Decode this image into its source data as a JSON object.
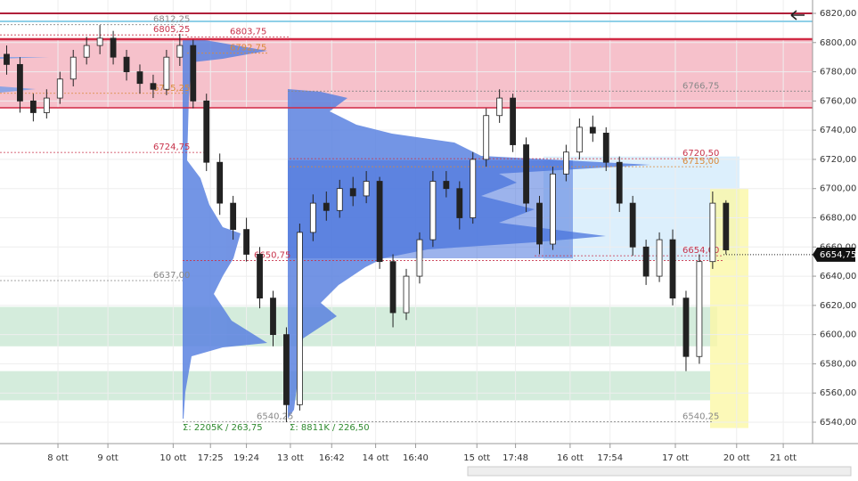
{
  "chart_data": {
    "type": "candlestick",
    "ylim": [
      6535,
      6825
    ],
    "yticks": [
      {
        "value": 6540,
        "label": "6540,00"
      },
      {
        "value": 6560,
        "label": "6560,00"
      },
      {
        "value": 6580,
        "label": "6580,00"
      },
      {
        "value": 6600,
        "label": "6600,00"
      },
      {
        "value": 6620,
        "label": "6620,00"
      },
      {
        "value": 6640,
        "label": "6640,00"
      },
      {
        "value": 6660,
        "label": "6660,00"
      },
      {
        "value": 6680,
        "label": "6680,00"
      },
      {
        "value": 6700,
        "label": "6700,00"
      },
      {
        "value": 6720,
        "label": "6720,00"
      },
      {
        "value": 6740,
        "label": "6740,00"
      },
      {
        "value": 6760,
        "label": "6760,00"
      },
      {
        "value": 6780,
        "label": "6780,00"
      },
      {
        "value": 6800,
        "label": "6800,00"
      },
      {
        "value": 6820,
        "label": "6820,00"
      }
    ],
    "xlim": [
      -0.5,
      60.5
    ],
    "xticks": [
      {
        "value": 3.85,
        "label": "8 ott"
      },
      {
        "value": 7.6,
        "label": "9 ott"
      },
      {
        "value": 12.5,
        "label": "10 ott"
      },
      {
        "value": 15.3,
        "label": "17:25"
      },
      {
        "value": 18.0,
        "label": "19:24"
      },
      {
        "value": 21.3,
        "label": "13 ott"
      },
      {
        "value": 24.4,
        "label": "16:42"
      },
      {
        "value": 27.7,
        "label": "14 ott"
      },
      {
        "value": 30.7,
        "label": "16:40"
      },
      {
        "value": 35.3,
        "label": "15 ott"
      },
      {
        "value": 38.2,
        "label": "17:48"
      },
      {
        "value": 42.3,
        "label": "16 ott"
      },
      {
        "value": 45.3,
        "label": "17:54"
      },
      {
        "value": 50.2,
        "label": "17 ott"
      },
      {
        "value": 54.8,
        "label": "20 ott"
      },
      {
        "value": 58.3,
        "label": "21 ott"
      }
    ],
    "grid": true,
    "open": [
      6792,
      6785,
      6760,
      6752,
      6762,
      6775,
      6790,
      6798,
      6803,
      6790,
      6780,
      6772,
      6768,
      6790,
      6798,
      6760,
      6718,
      6690,
      6672,
      6655,
      6625,
      6600,
      6552,
      6670,
      6690,
      6685,
      6700,
      6695,
      6705,
      6650,
      6615,
      6640,
      6665,
      6705,
      6700,
      6680,
      6720,
      6750,
      6762,
      6730,
      6690,
      6662,
      6710,
      6725,
      6742,
      6738,
      6718,
      6690,
      6660,
      6640,
      6665,
      6625,
      6585,
      6650,
      6690
    ],
    "high": [
      6798,
      6790,
      6765,
      6768,
      6780,
      6795,
      6804,
      6812,
      6808,
      6795,
      6785,
      6778,
      6795,
      6806,
      6802,
      6765,
      6724,
      6695,
      6680,
      6660,
      6630,
      6605,
      6676,
      6696,
      6698,
      6706,
      6708,
      6712,
      6708,
      6655,
      6645,
      6670,
      6712,
      6712,
      6705,
      6725,
      6755,
      6768,
      6765,
      6735,
      6695,
      6715,
      6730,
      6748,
      6750,
      6742,
      6722,
      6695,
      6665,
      6670,
      6672,
      6630,
      6655,
      6698,
      6692
    ],
    "low": [
      6778,
      6752,
      6746,
      6748,
      6758,
      6770,
      6785,
      6792,
      6785,
      6774,
      6765,
      6762,
      6764,
      6784,
      6755,
      6712,
      6682,
      6665,
      6650,
      6618,
      6592,
      6540,
      6548,
      6664,
      6678,
      6680,
      6688,
      6690,
      6645,
      6605,
      6610,
      6635,
      6660,
      6694,
      6672,
      6676,
      6715,
      6745,
      6725,
      6684,
      6655,
      6658,
      6705,
      6720,
      6732,
      6712,
      6684,
      6654,
      6634,
      6636,
      6620,
      6575,
      6580,
      6645,
      6655
    ],
    "close": [
      6785,
      6760,
      6752,
      6762,
      6775,
      6790,
      6798,
      6803,
      6790,
      6780,
      6772,
      6768,
      6790,
      6798,
      6760,
      6718,
      6690,
      6672,
      6655,
      6625,
      6600,
      6552,
      6670,
      6690,
      6685,
      6700,
      6695,
      6705,
      6650,
      6615,
      6640,
      6665,
      6705,
      6700,
      6680,
      6720,
      6750,
      6762,
      6730,
      6690,
      6662,
      6710,
      6725,
      6742,
      6738,
      6718,
      6690,
      6660,
      6640,
      6665,
      6625,
      6585,
      6650,
      6690,
      6658
    ],
    "zones": [
      {
        "from": 6802,
        "to": 6755,
        "color": "#f4b6c2"
      },
      {
        "from": 6619,
        "to": 6592,
        "color": "#cde9d6"
      },
      {
        "from": 6575,
        "to": 6555,
        "color": "#cde9d6"
      },
      {
        "from": 6722,
        "to": 6651,
        "color": "#d6ecfb"
      },
      {
        "from": 6700,
        "to": 6536,
        "color": "#fbf7a6"
      }
    ],
    "levels": [
      {
        "value": 6812.25,
        "label": "6812,25",
        "color": "#888888"
      },
      {
        "value": 6805.25,
        "label": "6805,25",
        "color": "#c8334b"
      },
      {
        "value": 6803.75,
        "label": "6803,75",
        "color": "#c8334b"
      },
      {
        "value": 6792.75,
        "label": "6792,75",
        "color": "#d98a3a"
      },
      {
        "value": 6765.25,
        "label": "6765,25",
        "color": "#d98a3a"
      },
      {
        "value": 6724.75,
        "label": "6724,75",
        "color": "#c8334b"
      },
      {
        "value": 6650.75,
        "label": "6650,75",
        "color": "#c8334b"
      },
      {
        "value": 6637.0,
        "label": "6637,00",
        "color": "#888888"
      },
      {
        "value": 6540.25,
        "label": "6540,25",
        "color": "#888888"
      },
      {
        "value": 6766.75,
        "label": "6766,75",
        "color": "#888888"
      },
      {
        "value": 6720.5,
        "label": "6720,50",
        "color": "#c8334b"
      },
      {
        "value": 6715.0,
        "label": "6715,00",
        "color": "#d98a3a"
      },
      {
        "value": 6654.0,
        "label": "6654,00",
        "color": "#c8334b"
      },
      {
        "value": 6540.25,
        "label": "6540,25",
        "color": "#888888"
      }
    ],
    "profile_notes": [
      "Σ: 2205K / 263,75",
      "Σ: 8811K / 226,50"
    ],
    "last_price": {
      "value": 6654.75,
      "label": "6654,75"
    }
  }
}
